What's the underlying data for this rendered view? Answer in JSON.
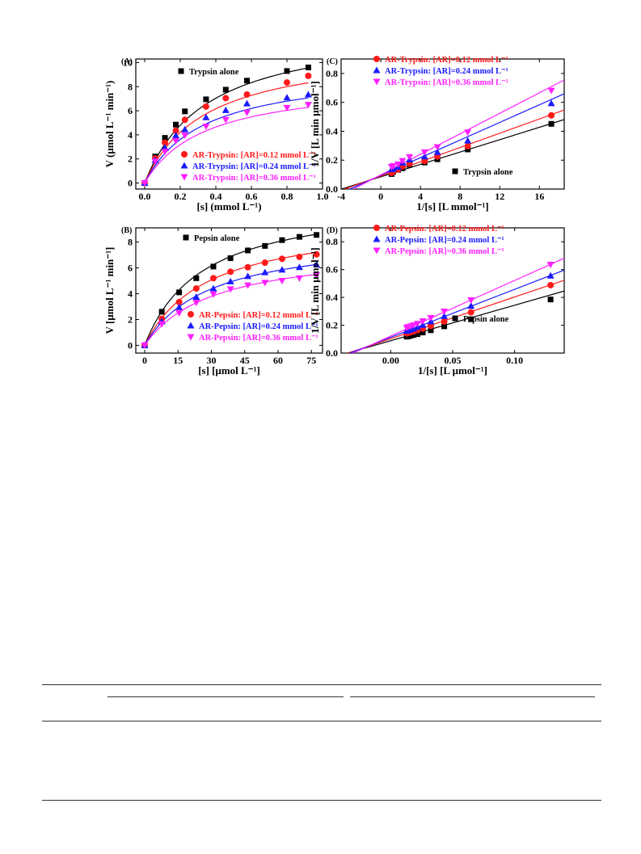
{
  "colors": {
    "black": "#000000",
    "red": "#ff1a1a",
    "blue": "#1a1aff",
    "magenta": "#ff20ff"
  },
  "chart_data": [
    {
      "panel": "(A)",
      "type": "scatter",
      "xlabel": "[s] (mmol L⁻¹)",
      "ylabel": "V (μmol L⁻¹ min⁻¹)",
      "xlim": [
        -0.05,
        1.0
      ],
      "ylim": [
        -0.5,
        10.3
      ],
      "xticks": [
        "0.0",
        "0.2",
        "0.4",
        "0.6",
        "0.8",
        "1.0"
      ],
      "xtick_values": [
        0,
        0.2,
        0.4,
        0.6,
        0.8,
        1.0
      ],
      "yticks": [
        "0",
        "2",
        "4",
        "6",
        "8",
        "10"
      ],
      "ytick_values": [
        0,
        2,
        4,
        6,
        8,
        10
      ],
      "x": [
        0,
        0.059,
        0.114,
        0.175,
        0.226,
        0.345,
        0.456,
        0.575,
        0.8,
        0.92
      ],
      "series": [
        {
          "name": "Trypsin alone",
          "color": "#000000",
          "marker": "square",
          "values": [
            0,
            2.2,
            3.75,
            4.85,
            5.95,
            6.95,
            7.75,
            8.5,
            9.3,
            9.6
          ],
          "fit_vmax": 13.2,
          "fit_km": 0.35
        },
        {
          "name": "AR-Trypsin: [AR]=0.12 mmol L⁻¹",
          "color": "#ff1a1a",
          "marker": "circle",
          "values": [
            0,
            2.05,
            3.35,
            4.35,
            5.25,
            6.35,
            7.05,
            7.35,
            8.35,
            8.9
          ],
          "fit_vmax": 11.4,
          "fit_km": 0.34
        },
        {
          "name": "AR-Trypsin: [AR]=0.24 mmol L⁻¹",
          "color": "#1a1aff",
          "marker": "triangle-up",
          "values": [
            0,
            1.9,
            2.95,
            3.95,
            4.45,
            5.45,
            6.05,
            6.6,
            7.1,
            7.35
          ],
          "fit_vmax": 9.6,
          "fit_km": 0.33
        },
        {
          "name": "AR-Trypsin: [AR]=0.36 mmol L⁻¹",
          "color": "#ff20ff",
          "marker": "triangle-down",
          "values": [
            0,
            1.8,
            2.6,
            3.5,
            3.95,
            4.7,
            5.25,
            5.85,
            6.25,
            6.5
          ],
          "fit_vmax": 8.6,
          "fit_km": 0.34
        }
      ],
      "legend_series": [
        0
      ],
      "legend2_series": [
        1,
        2,
        3
      ]
    },
    {
      "panel": "(C)",
      "type": "scatter",
      "xlabel": "1/[s] [L mmol⁻¹]",
      "ylabel": "1/V [L min μmol⁻¹]",
      "xlim": [
        -4,
        18.5
      ],
      "ylim": [
        0,
        0.9
      ],
      "xticks": [
        "-4",
        "0",
        "4",
        "8",
        "12",
        "16"
      ],
      "xtick_values": [
        -4,
        0,
        4,
        8,
        12,
        16
      ],
      "yticks": [
        "0.0",
        "0.2",
        "0.4",
        "0.6",
        "0.8"
      ],
      "ytick_values": [
        0,
        0.2,
        0.4,
        0.6,
        0.8
      ],
      "x": [
        1.09,
        1.25,
        1.74,
        2.19,
        2.9,
        4.42,
        5.71,
        8.77,
        17.2
      ],
      "series": [
        {
          "name": "Trypsin alone",
          "color": "#000000",
          "marker": "square",
          "values": [
            0.104,
            0.118,
            0.133,
            0.144,
            0.168,
            0.184,
            0.206,
            0.274,
            0.451
          ]
        },
        {
          "name": "AR-Trypsin: [AR]=0.12 mmol L⁻¹",
          "color": "#ff1a1a",
          "marker": "circle",
          "values": [
            0.112,
            0.121,
            0.136,
            0.157,
            0.176,
            0.194,
            0.226,
            0.296,
            0.51
          ]
        },
        {
          "name": "AR-Trypsin: [AR]=0.24 mmol L⁻¹",
          "color": "#1a1aff",
          "marker": "triangle-up",
          "values": [
            0.136,
            0.141,
            0.152,
            0.182,
            0.204,
            0.225,
            0.256,
            0.335,
            0.593
          ]
        },
        {
          "name": "AR-Trypsin: [AR]=0.36 mmol L⁻¹",
          "color": "#ff20ff",
          "marker": "triangle-down",
          "values": [
            0.154,
            0.16,
            0.171,
            0.195,
            0.222,
            0.255,
            0.291,
            0.393,
            0.681
          ]
        }
      ],
      "fit_lines": [
        {
          "color": "#000000",
          "intercept": 0.085,
          "slope": 0.0214
        },
        {
          "color": "#ff1a1a",
          "intercept": 0.09,
          "slope": 0.0247
        },
        {
          "color": "#1a1aff",
          "intercept": 0.095,
          "slope": 0.0305
        },
        {
          "color": "#ff20ff",
          "intercept": 0.098,
          "slope": 0.0355
        }
      ],
      "legend_series": [
        1,
        2,
        3
      ],
      "legend2_series": [
        0
      ]
    },
    {
      "panel": "(B)",
      "type": "scatter",
      "xlabel": "[s] [μmol L⁻¹]",
      "ylabel": "V [μmol L⁻¹ min⁻¹]",
      "xlim": [
        -4,
        80
      ],
      "ylim": [
        -0.6,
        9.1
      ],
      "xticks": [
        "0",
        "15",
        "30",
        "45",
        "60",
        "75"
      ],
      "xtick_values": [
        0,
        15,
        30,
        45,
        60,
        75
      ],
      "yticks": [
        "0",
        "2",
        "4",
        "6",
        "8"
      ],
      "ytick_values": [
        0,
        2,
        4,
        6,
        8
      ],
      "x": [
        0,
        7.7,
        15.5,
        23.2,
        30.9,
        38.6,
        46.4,
        54.1,
        61.8,
        69.6,
        77.3
      ],
      "series": [
        {
          "name": "Pepsin alone",
          "color": "#000000",
          "marker": "square",
          "values": [
            0,
            2.6,
            4.1,
            5.2,
            6.1,
            6.75,
            7.35,
            7.7,
            8.15,
            8.4,
            8.55
          ],
          "fit_vmax": 11.5,
          "fit_km": 26
        },
        {
          "name": "AR-Pepsin: [AR]=0.12 mmol L⁻¹",
          "color": "#ff1a1a",
          "marker": "circle",
          "values": [
            0,
            2.05,
            3.35,
            4.4,
            5.2,
            5.7,
            6.05,
            6.4,
            6.7,
            6.85,
            7.05
          ],
          "fit_vmax": 9.8,
          "fit_km": 28
        },
        {
          "name": "AR-Pepsin: [AR]=0.24 mmol L⁻¹",
          "color": "#1a1aff",
          "marker": "triangle-up",
          "values": [
            0,
            1.85,
            2.95,
            3.75,
            4.4,
            4.95,
            5.35,
            5.65,
            5.85,
            6.05,
            6.25
          ],
          "fit_vmax": 8.6,
          "fit_km": 29
        },
        {
          "name": "AR-Pepsin: [AR]=0.36 mmol L⁻¹",
          "color": "#ff20ff",
          "marker": "triangle-down",
          "values": [
            0,
            1.65,
            2.5,
            3.3,
            3.95,
            4.35,
            4.65,
            4.85,
            5.0,
            5.2,
            5.45
          ],
          "fit_vmax": 7.7,
          "fit_km": 31
        }
      ],
      "legend_series": [
        0
      ],
      "legend2_series": [
        1,
        2,
        3
      ]
    },
    {
      "panel": "(D)",
      "type": "scatter",
      "xlabel": "1/[s] [L μmol⁻¹]",
      "ylabel": "1/V [L min μmol⁻¹]",
      "xlim": [
        -0.04,
        0.14
      ],
      "ylim": [
        0,
        0.9
      ],
      "xticks": [
        "0.00",
        "0.05",
        "0.10"
      ],
      "xtick_values": [
        0,
        0.05,
        0.1
      ],
      "yticks": [
        "0.0",
        "0.2",
        "0.4",
        "0.6",
        "0.8"
      ],
      "ytick_values": [
        0,
        0.2,
        0.4,
        0.6,
        0.8
      ],
      "x": [
        0.0129,
        0.0144,
        0.0162,
        0.0185,
        0.0216,
        0.0259,
        0.0324,
        0.0432,
        0.0648,
        0.129
      ],
      "series": [
        {
          "name": "Pepsin alone",
          "color": "#000000",
          "marker": "square",
          "values": [
            0.118,
            0.121,
            0.125,
            0.13,
            0.136,
            0.148,
            0.164,
            0.192,
            0.243,
            0.385
          ]
        },
        {
          "name": "AR-Pepsin: [AR]=0.12 mmol L⁻¹",
          "color": "#ff1a1a",
          "marker": "circle",
          "values": [
            0.142,
            0.146,
            0.15,
            0.156,
            0.165,
            0.176,
            0.196,
            0.227,
            0.293,
            0.488
          ]
        },
        {
          "name": "AR-Pepsin: [AR]=0.24 mmol L⁻¹",
          "color": "#1a1aff",
          "marker": "triangle-up",
          "values": [
            0.16,
            0.165,
            0.17,
            0.176,
            0.187,
            0.202,
            0.227,
            0.266,
            0.339,
            0.556
          ]
        },
        {
          "name": "AR-Pepsin: [AR]=0.36 mmol L⁻¹",
          "color": "#ff20ff",
          "marker": "triangle-down",
          "values": [
            0.183,
            0.188,
            0.193,
            0.2,
            0.211,
            0.23,
            0.253,
            0.3,
            0.38,
            0.636
          ]
        }
      ],
      "fit_lines": [
        {
          "color": "#000000",
          "intercept": 0.089,
          "slope": 2.55
        },
        {
          "color": "#ff1a1a",
          "intercept": 0.103,
          "slope": 3.0
        },
        {
          "color": "#1a1aff",
          "intercept": 0.113,
          "slope": 3.45
        },
        {
          "color": "#ff20ff",
          "intercept": 0.122,
          "slope": 4.0
        }
      ],
      "legend_series": [
        1,
        2,
        3
      ],
      "legend2_series": [
        0
      ]
    }
  ]
}
